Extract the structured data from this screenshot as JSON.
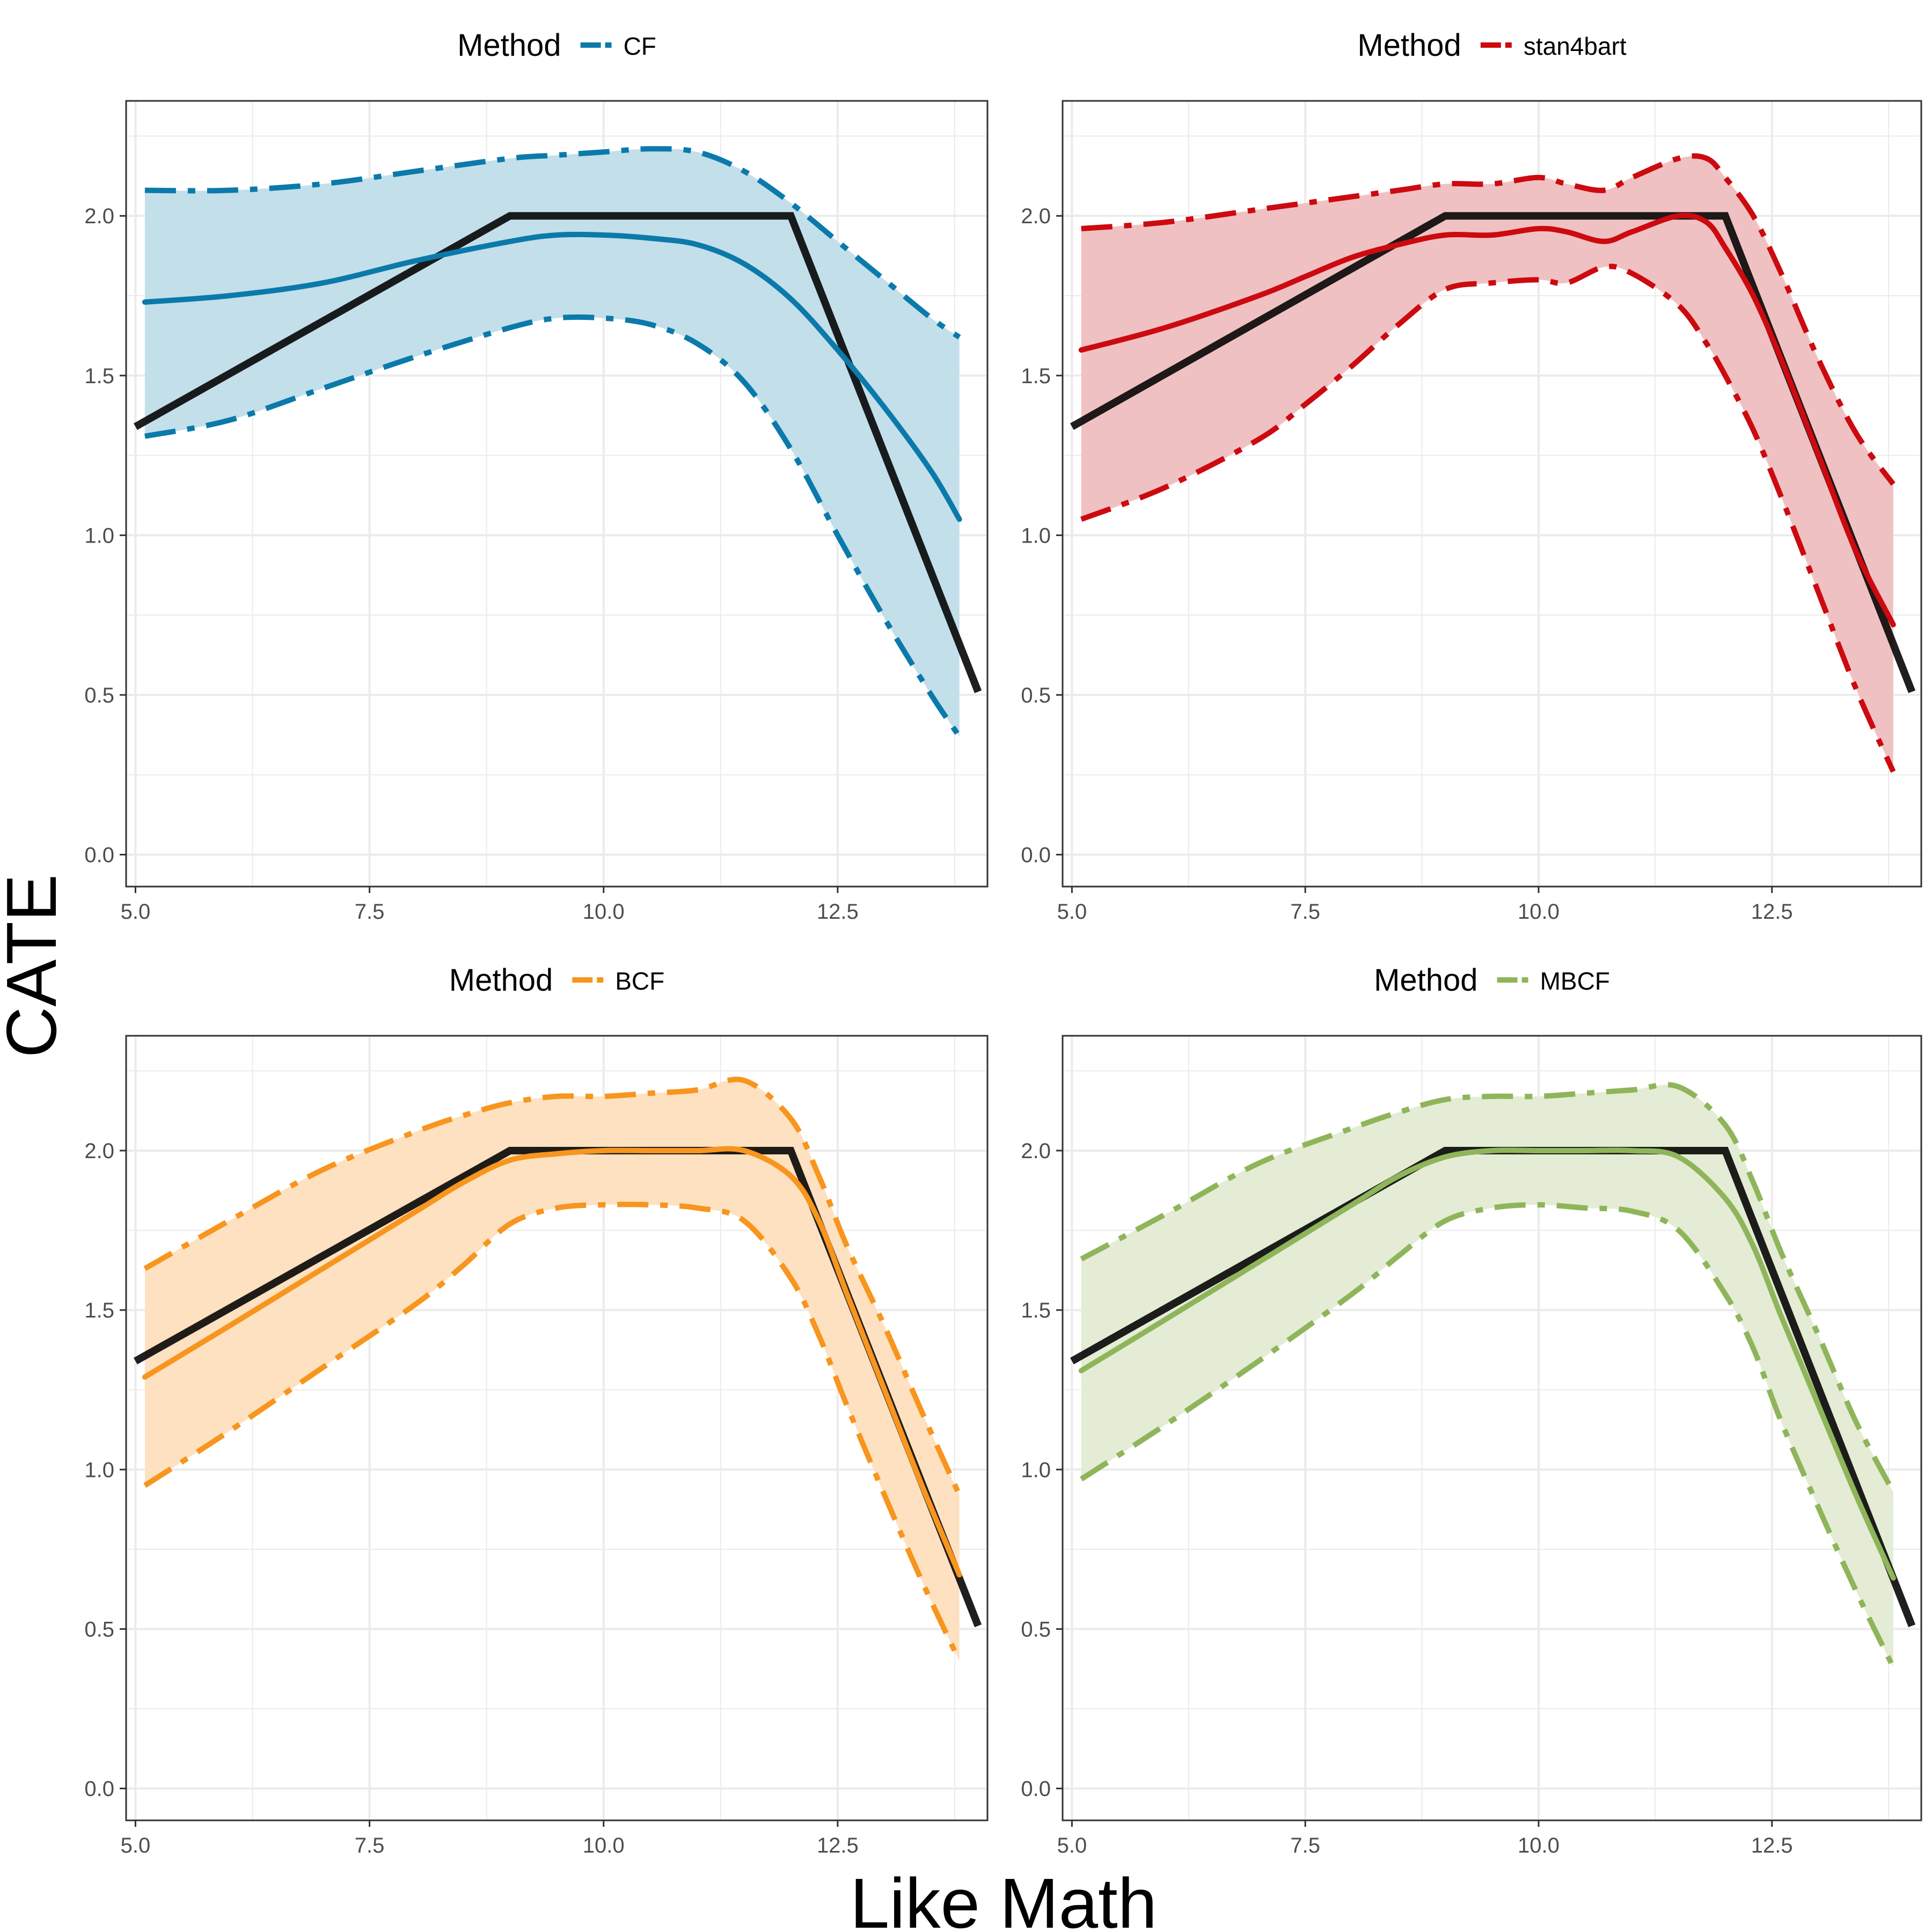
{
  "figure": {
    "ylabel": "CATE",
    "xlabel": "Like Math",
    "colors": {
      "truth": "#000000",
      "grid": "#ebebeb",
      "border": "#333333"
    }
  },
  "chart_data": [
    {
      "type": "line",
      "legend_title": "Method",
      "legend_placement": "top",
      "method": "CF",
      "color": "#0b7aab",
      "fill": "#c3dfea",
      "xlim": [
        4.9,
        14.1
      ],
      "ylim": [
        -0.1,
        2.36
      ],
      "x_ticks": [
        5.0,
        7.5,
        10.0,
        12.5
      ],
      "x_tick_labels": [
        "5.0",
        "7.5",
        "10.0",
        "12.5"
      ],
      "y_ticks": [
        0.0,
        0.5,
        1.0,
        1.5,
        2.0
      ],
      "y_tick_labels": [
        "0.0",
        "0.5",
        "1.0",
        "1.5",
        "2.0"
      ],
      "grid": true,
      "truth": {
        "x": [
          5.0,
          9.0,
          12.0,
          14.0
        ],
        "y": [
          1.34,
          2.0,
          2.0,
          0.51
        ]
      },
      "estimate": {
        "x": [
          5.1,
          6.0,
          7.0,
          8.0,
          9.0,
          9.5,
          10.0,
          10.5,
          11.0,
          11.5,
          12.0,
          12.5,
          13.0,
          13.5,
          13.8
        ],
        "y": [
          1.73,
          1.75,
          1.79,
          1.86,
          1.92,
          1.94,
          1.94,
          1.93,
          1.91,
          1.85,
          1.74,
          1.58,
          1.4,
          1.2,
          1.05
        ]
      },
      "upper": {
        "x": [
          5.1,
          6.0,
          7.0,
          8.0,
          9.0,
          9.5,
          10.0,
          10.5,
          11.0,
          11.5,
          12.0,
          12.5,
          13.0,
          13.5,
          13.8
        ],
        "y": [
          2.08,
          2.08,
          2.1,
          2.14,
          2.18,
          2.19,
          2.2,
          2.21,
          2.2,
          2.14,
          2.04,
          1.92,
          1.8,
          1.68,
          1.62
        ]
      },
      "lower": {
        "x": [
          5.1,
          6.0,
          7.0,
          8.0,
          9.0,
          9.5,
          10.0,
          10.5,
          11.0,
          11.5,
          12.0,
          12.5,
          13.0,
          13.5,
          13.8
        ],
        "y": [
          1.31,
          1.36,
          1.46,
          1.56,
          1.65,
          1.68,
          1.68,
          1.66,
          1.6,
          1.48,
          1.27,
          1.0,
          0.74,
          0.5,
          0.37
        ]
      }
    },
    {
      "type": "line",
      "legend_title": "Method",
      "legend_placement": "top",
      "method": "stan4bart",
      "color": "#cc0a0f",
      "fill": "#f0c1c3",
      "xlim": [
        4.9,
        14.1
      ],
      "ylim": [
        -0.1,
        2.36
      ],
      "x_ticks": [
        5.0,
        7.5,
        10.0,
        12.5
      ],
      "x_tick_labels": [
        "5.0",
        "7.5",
        "10.0",
        "12.5"
      ],
      "y_ticks": [
        0.0,
        0.5,
        1.0,
        1.5,
        2.0
      ],
      "y_tick_labels": [
        "0.0",
        "0.5",
        "1.0",
        "1.5",
        "2.0"
      ],
      "grid": true,
      "truth": {
        "x": [
          5.0,
          9.0,
          12.0,
          14.0
        ],
        "y": [
          1.34,
          2.0,
          2.0,
          0.51
        ]
      },
      "estimate": {
        "x": [
          5.1,
          6.0,
          7.0,
          7.5,
          8.0,
          8.5,
          9.0,
          9.5,
          10.0,
          10.3,
          10.7,
          11.0,
          11.5,
          11.8,
          12.0,
          12.3,
          12.6,
          13.0,
          13.4,
          13.8
        ],
        "y": [
          1.58,
          1.65,
          1.75,
          1.81,
          1.87,
          1.91,
          1.94,
          1.94,
          1.96,
          1.95,
          1.92,
          1.95,
          2.0,
          1.98,
          1.9,
          1.75,
          1.55,
          1.25,
          0.95,
          0.72
        ]
      },
      "upper": {
        "x": [
          5.1,
          6.0,
          7.0,
          7.5,
          8.0,
          8.5,
          9.0,
          9.5,
          10.0,
          10.3,
          10.7,
          11.0,
          11.5,
          11.8,
          12.0,
          12.3,
          12.6,
          13.0,
          13.4,
          13.8
        ],
        "y": [
          1.96,
          1.98,
          2.02,
          2.04,
          2.06,
          2.08,
          2.1,
          2.1,
          2.12,
          2.1,
          2.08,
          2.12,
          2.18,
          2.18,
          2.12,
          2.0,
          1.82,
          1.55,
          1.32,
          1.16
        ]
      },
      "lower": {
        "x": [
          5.1,
          6.0,
          7.0,
          7.5,
          8.0,
          8.5,
          9.0,
          9.5,
          10.0,
          10.3,
          10.7,
          11.0,
          11.5,
          11.8,
          12.0,
          12.3,
          12.6,
          13.0,
          13.4,
          13.8
        ],
        "y": [
          1.05,
          1.15,
          1.3,
          1.41,
          1.53,
          1.66,
          1.77,
          1.79,
          1.8,
          1.79,
          1.84,
          1.82,
          1.72,
          1.6,
          1.5,
          1.33,
          1.12,
          0.82,
          0.52,
          0.26
        ]
      }
    },
    {
      "type": "line",
      "legend_title": "Method",
      "legend_placement": "top",
      "method": "BCF",
      "color": "#f7951e",
      "fill": "#fde1c1",
      "xlim": [
        4.9,
        14.1
      ],
      "ylim": [
        -0.1,
        2.36
      ],
      "x_ticks": [
        5.0,
        7.5,
        10.0,
        12.5
      ],
      "x_tick_labels": [
        "5.0",
        "7.5",
        "10.0",
        "12.5"
      ],
      "y_ticks": [
        0.0,
        0.5,
        1.0,
        1.5,
        2.0
      ],
      "y_tick_labels": [
        "0.0",
        "0.5",
        "1.0",
        "1.5",
        "2.0"
      ],
      "grid": true,
      "truth": {
        "x": [
          5.0,
          9.0,
          12.0,
          14.0
        ],
        "y": [
          1.34,
          2.0,
          2.0,
          0.51
        ]
      },
      "estimate": {
        "x": [
          5.1,
          6.0,
          7.0,
          8.0,
          8.5,
          9.0,
          9.5,
          10.0,
          10.5,
          11.0,
          11.5,
          12.0,
          12.3,
          12.6,
          13.0,
          13.4,
          13.8
        ],
        "y": [
          1.29,
          1.45,
          1.63,
          1.81,
          1.9,
          1.97,
          1.99,
          2.0,
          2.0,
          2.0,
          2.0,
          1.92,
          1.78,
          1.55,
          1.25,
          0.95,
          0.67
        ]
      },
      "upper": {
        "x": [
          5.1,
          6.0,
          7.0,
          8.0,
          8.5,
          9.0,
          9.5,
          10.0,
          10.5,
          11.0,
          11.5,
          12.0,
          12.3,
          12.6,
          13.0,
          13.4,
          13.8
        ],
        "y": [
          1.63,
          1.78,
          1.94,
          2.06,
          2.11,
          2.15,
          2.17,
          2.17,
          2.18,
          2.19,
          2.22,
          2.1,
          1.92,
          1.7,
          1.45,
          1.18,
          0.92
        ]
      },
      "lower": {
        "x": [
          5.1,
          6.0,
          7.0,
          8.0,
          8.5,
          9.0,
          9.5,
          10.0,
          10.5,
          11.0,
          11.5,
          12.0,
          12.3,
          12.6,
          13.0,
          13.4,
          13.8
        ],
        "y": [
          0.95,
          1.12,
          1.32,
          1.52,
          1.64,
          1.77,
          1.82,
          1.83,
          1.83,
          1.82,
          1.78,
          1.6,
          1.42,
          1.2,
          0.92,
          0.65,
          0.4
        ]
      }
    },
    {
      "type": "line",
      "legend_title": "Method",
      "legend_placement": "top",
      "method": "MBCF",
      "color": "#8fb55b",
      "fill": "#e4ecd5",
      "xlim": [
        4.9,
        14.1
      ],
      "ylim": [
        -0.1,
        2.36
      ],
      "x_ticks": [
        5.0,
        7.5,
        10.0,
        12.5
      ],
      "x_tick_labels": [
        "5.0",
        "7.5",
        "10.0",
        "12.5"
      ],
      "y_ticks": [
        0.0,
        0.5,
        1.0,
        1.5,
        2.0
      ],
      "y_tick_labels": [
        "0.0",
        "0.5",
        "1.0",
        "1.5",
        "2.0"
      ],
      "grid": true,
      "truth": {
        "x": [
          5.0,
          9.0,
          12.0,
          14.0
        ],
        "y": [
          1.34,
          2.0,
          2.0,
          0.51
        ]
      },
      "estimate": {
        "x": [
          5.1,
          6.0,
          7.0,
          8.0,
          8.5,
          9.0,
          9.5,
          10.0,
          10.5,
          11.0,
          11.5,
          12.0,
          12.3,
          12.6,
          13.0,
          13.4,
          13.8
        ],
        "y": [
          1.31,
          1.47,
          1.65,
          1.83,
          1.92,
          1.98,
          2.0,
          2.0,
          2.0,
          2.0,
          1.98,
          1.85,
          1.7,
          1.48,
          1.2,
          0.92,
          0.66
        ]
      },
      "upper": {
        "x": [
          5.1,
          6.0,
          7.0,
          8.0,
          8.5,
          9.0,
          9.5,
          10.0,
          10.5,
          11.0,
          11.5,
          12.0,
          12.3,
          12.6,
          13.0,
          13.4,
          13.8
        ],
        "y": [
          1.66,
          1.8,
          1.96,
          2.07,
          2.12,
          2.16,
          2.17,
          2.17,
          2.18,
          2.19,
          2.2,
          2.08,
          1.9,
          1.68,
          1.42,
          1.15,
          0.93
        ]
      },
      "lower": {
        "x": [
          5.1,
          6.0,
          7.0,
          8.0,
          8.5,
          9.0,
          9.5,
          10.0,
          10.5,
          11.0,
          11.5,
          12.0,
          12.3,
          12.6,
          13.0,
          13.4,
          13.8
        ],
        "y": [
          0.97,
          1.14,
          1.34,
          1.55,
          1.67,
          1.78,
          1.82,
          1.83,
          1.82,
          1.81,
          1.75,
          1.55,
          1.38,
          1.15,
          0.88,
          0.62,
          0.38
        ]
      }
    }
  ]
}
